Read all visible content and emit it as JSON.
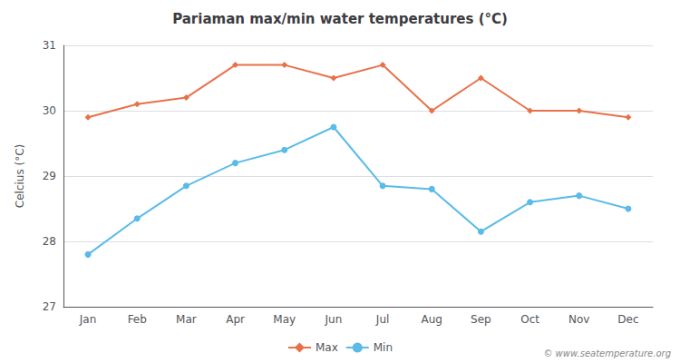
{
  "chart_data": {
    "type": "line",
    "title": "Pariaman max/min water temperatures (°C)",
    "ylabel": "Celcius (°C)",
    "categories": [
      "Jan",
      "Feb",
      "Mar",
      "Apr",
      "May",
      "Jun",
      "Jul",
      "Aug",
      "Sep",
      "Oct",
      "Nov",
      "Dec"
    ],
    "series": [
      {
        "name": "Max",
        "color": "#e8714a",
        "marker": "diamond",
        "values": [
          29.9,
          30.1,
          30.2,
          30.7,
          30.7,
          30.5,
          30.7,
          30.0,
          30.5,
          30.0,
          30.0,
          29.9
        ]
      },
      {
        "name": "Min",
        "color": "#5abbe8",
        "marker": "circle",
        "values": [
          27.8,
          28.35,
          28.85,
          29.2,
          29.4,
          29.75,
          28.85,
          28.8,
          28.15,
          28.6,
          28.7,
          28.5
        ]
      }
    ],
    "ylim": [
      27,
      31
    ],
    "yticks": [
      27,
      28,
      29,
      30,
      31
    ],
    "grid": true,
    "legend": "bottom",
    "annotations": [
      "© www.seatemperature.org"
    ]
  }
}
